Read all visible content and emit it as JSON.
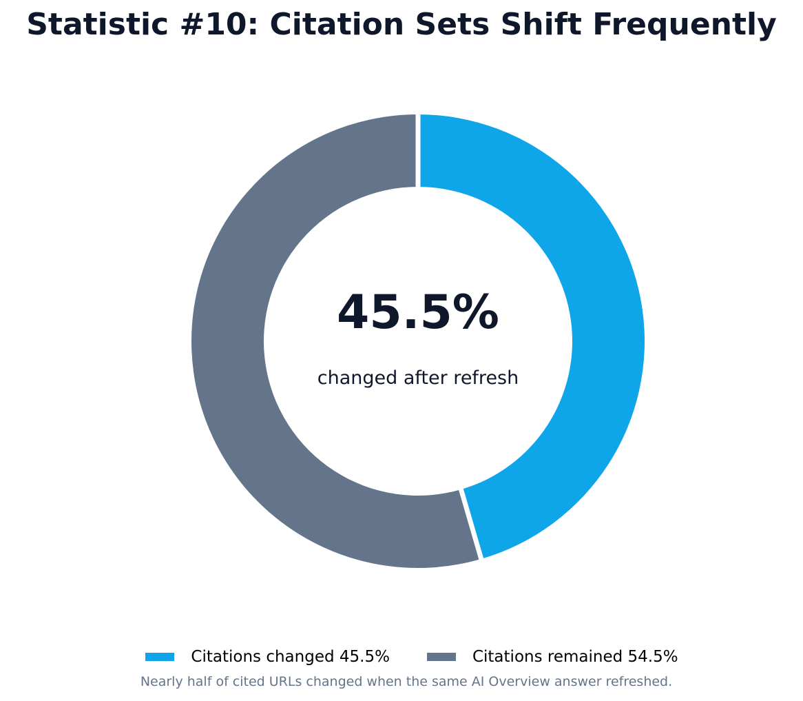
{
  "colors": {
    "changed": "#0ea5e9",
    "remained": "#64748b",
    "title": "#0f172a",
    "caption": "#64748b"
  },
  "chart_data": {
    "type": "pie",
    "variant": "donut",
    "title": "Statistic #10: Citation Sets Shift Frequently",
    "center_value": "45.5%",
    "center_label": "changed after refresh",
    "slices": [
      {
        "label": "Citations changed 45.5%",
        "value": 45.5,
        "color": "#0ea5e9"
      },
      {
        "label": "Citations remained 54.5%",
        "value": 54.5,
        "color": "#64748b"
      }
    ],
    "start_angle": "12 o'clock",
    "direction": "clockwise",
    "legend_position": "bottom",
    "caption": "Nearly half of cited URLs changed when the same AI Overview answer refreshed."
  }
}
